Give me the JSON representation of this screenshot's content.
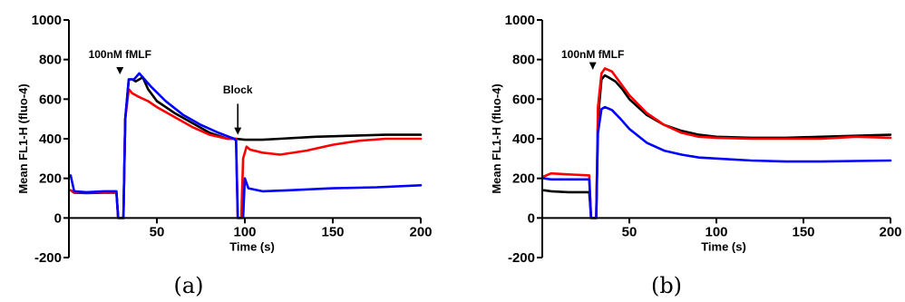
{
  "chart_data": [
    {
      "type": "line",
      "panel_label": "(a)",
      "xlabel": "Time (s)",
      "ylabel": "Mean FL1-H (fluo-4)",
      "xlim": [
        0,
        200
      ],
      "ylim": [
        -200,
        1000
      ],
      "xticks": [
        50,
        100,
        150,
        200
      ],
      "yticks": [
        -200,
        0,
        200,
        400,
        600,
        800,
        1000
      ],
      "annotations": [
        {
          "text": "100nM fMLF",
          "x": 29,
          "y_from": 790,
          "y_to": 770,
          "arrow_to_y": 725
        },
        {
          "text": "Block",
          "x": 96,
          "y_from": 610,
          "y_to": 595,
          "arrow_to_y": 420
        }
      ],
      "series": [
        {
          "color": "#000000",
          "points": [
            [
              1,
              140
            ],
            [
              3,
              128
            ],
            [
              10,
              125
            ],
            [
              20,
              128
            ],
            [
              27,
              128
            ],
            [
              28,
              0
            ],
            [
              31,
              0
            ],
            [
              32,
              500
            ],
            [
              34,
              700
            ],
            [
              36,
              700
            ],
            [
              38,
              690
            ],
            [
              42,
              710
            ],
            [
              45,
              650
            ],
            [
              50,
              590
            ],
            [
              60,
              530
            ],
            [
              70,
              480
            ],
            [
              80,
              430
            ],
            [
              90,
              400
            ],
            [
              95,
              400
            ],
            [
              100,
              395
            ],
            [
              110,
              395
            ],
            [
              120,
              400
            ],
            [
              140,
              410
            ],
            [
              160,
              415
            ],
            [
              180,
              420
            ],
            [
              200,
              420
            ]
          ]
        },
        {
          "color": "#ff0000",
          "points": [
            [
              1,
              140
            ],
            [
              3,
              130
            ],
            [
              10,
              128
            ],
            [
              20,
              130
            ],
            [
              27,
              130
            ],
            [
              28,
              0
            ],
            [
              31,
              0
            ],
            [
              32,
              500
            ],
            [
              34,
              650
            ],
            [
              36,
              630
            ],
            [
              40,
              610
            ],
            [
              45,
              590
            ],
            [
              50,
              560
            ],
            [
              60,
              510
            ],
            [
              70,
              460
            ],
            [
              80,
              420
            ],
            [
              90,
              400
            ],
            [
              95,
              400
            ],
            [
              96,
              0
            ],
            [
              98,
              0
            ],
            [
              99,
              300
            ],
            [
              101,
              360
            ],
            [
              103,
              345
            ],
            [
              110,
              330
            ],
            [
              120,
              320
            ],
            [
              135,
              340
            ],
            [
              150,
              370
            ],
            [
              165,
              390
            ],
            [
              180,
              400
            ],
            [
              200,
              400
            ]
          ]
        },
        {
          "color": "#0000ff",
          "points": [
            [
              1,
              215
            ],
            [
              3,
              135
            ],
            [
              10,
              130
            ],
            [
              20,
              135
            ],
            [
              27,
              135
            ],
            [
              28,
              0
            ],
            [
              31,
              0
            ],
            [
              32,
              500
            ],
            [
              34,
              700
            ],
            [
              37,
              700
            ],
            [
              40,
              730
            ],
            [
              43,
              700
            ],
            [
              47,
              660
            ],
            [
              55,
              590
            ],
            [
              65,
              520
            ],
            [
              75,
              470
            ],
            [
              85,
              430
            ],
            [
              94,
              400
            ],
            [
              95,
              390
            ],
            [
              96,
              0
            ],
            [
              99,
              0
            ],
            [
              100,
              200
            ],
            [
              102,
              150
            ],
            [
              110,
              135
            ],
            [
              125,
              140
            ],
            [
              150,
              150
            ],
            [
              175,
              155
            ],
            [
              200,
              165
            ]
          ]
        }
      ]
    },
    {
      "type": "line",
      "panel_label": "(b)",
      "xlabel": "Time (s)",
      "ylabel": "Mean FL1-H (fluo-4)",
      "xlim": [
        0,
        200
      ],
      "ylim": [
        -200,
        1000
      ],
      "xticks": [
        50,
        100,
        150,
        200
      ],
      "yticks": [
        -200,
        0,
        200,
        400,
        600,
        800,
        1000
      ],
      "annotations": [
        {
          "text": "100nM fMLF",
          "x": 29,
          "y_from": 790,
          "y_to": 770,
          "arrow_to_y": 750
        }
      ],
      "series": [
        {
          "color": "#000000",
          "points": [
            [
              1,
              140
            ],
            [
              5,
              135
            ],
            [
              15,
              130
            ],
            [
              27,
              130
            ],
            [
              28,
              0
            ],
            [
              31,
              0
            ],
            [
              32,
              500
            ],
            [
              34,
              700
            ],
            [
              36,
              720
            ],
            [
              38,
              710
            ],
            [
              42,
              690
            ],
            [
              46,
              650
            ],
            [
              50,
              600
            ],
            [
              60,
              520
            ],
            [
              70,
              470
            ],
            [
              80,
              440
            ],
            [
              90,
              420
            ],
            [
              100,
              410
            ],
            [
              120,
              405
            ],
            [
              140,
              405
            ],
            [
              160,
              410
            ],
            [
              180,
              415
            ],
            [
              200,
              420
            ]
          ]
        },
        {
          "color": "#ff0000",
          "points": [
            [
              1,
              210
            ],
            [
              5,
              225
            ],
            [
              15,
              220
            ],
            [
              27,
              215
            ],
            [
              28,
              0
            ],
            [
              31,
              0
            ],
            [
              32,
              560
            ],
            [
              34,
              730
            ],
            [
              36,
              755
            ],
            [
              40,
              740
            ],
            [
              45,
              680
            ],
            [
              50,
              620
            ],
            [
              60,
              530
            ],
            [
              70,
              470
            ],
            [
              80,
              430
            ],
            [
              90,
              410
            ],
            [
              100,
              405
            ],
            [
              120,
              400
            ],
            [
              140,
              400
            ],
            [
              160,
              400
            ],
            [
              180,
              410
            ],
            [
              200,
              405
            ]
          ]
        },
        {
          "color": "#0000ff",
          "points": [
            [
              1,
              200
            ],
            [
              5,
              195
            ],
            [
              15,
              195
            ],
            [
              27,
              195
            ],
            [
              28,
              0
            ],
            [
              31,
              0
            ],
            [
              32,
              430
            ],
            [
              34,
              550
            ],
            [
              36,
              560
            ],
            [
              40,
              545
            ],
            [
              45,
              500
            ],
            [
              50,
              450
            ],
            [
              60,
              380
            ],
            [
              70,
              340
            ],
            [
              80,
              320
            ],
            [
              90,
              305
            ],
            [
              100,
              300
            ],
            [
              120,
              290
            ],
            [
              140,
              285
            ],
            [
              160,
              285
            ],
            [
              180,
              288
            ],
            [
              200,
              290
            ]
          ]
        }
      ]
    }
  ]
}
